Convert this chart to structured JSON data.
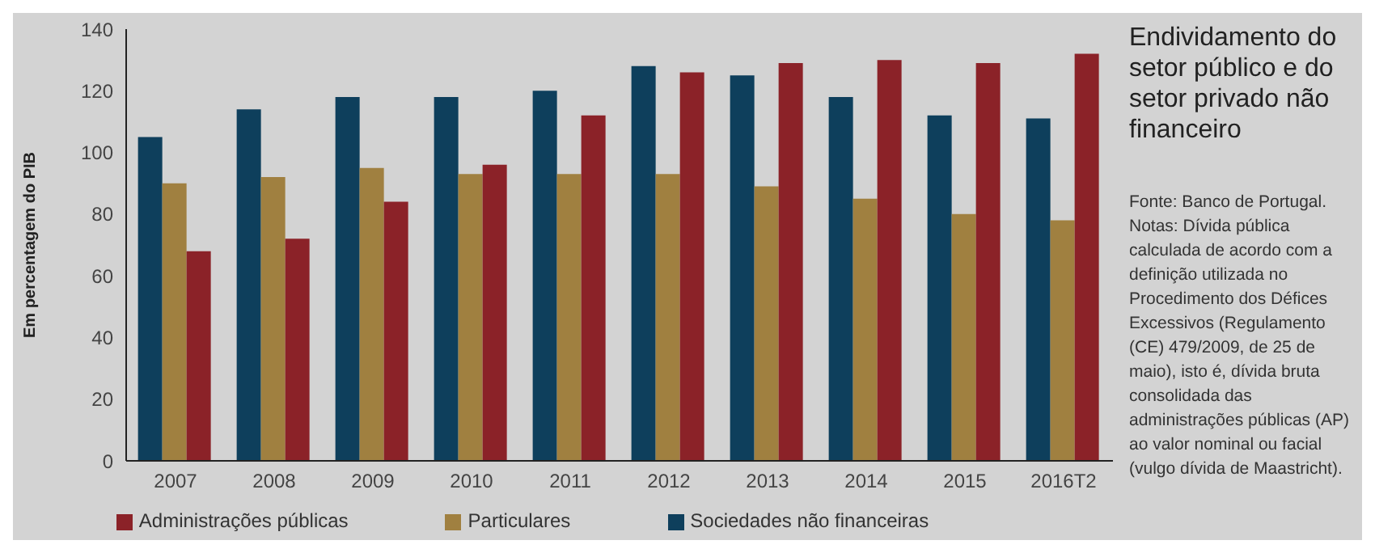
{
  "chart_data": {
    "type": "bar",
    "title": "Endividamento do setor público e do setor privado não financeiro",
    "ylabel": "Em percentagem do PIB",
    "categories": [
      "2007",
      "2008",
      "2009",
      "2010",
      "2011",
      "2012",
      "2013",
      "2014",
      "2015",
      "2016T2"
    ],
    "series": [
      {
        "name": "Sociedades não financeiras",
        "color": "#0e3f5c",
        "values": [
          105,
          114,
          118,
          118,
          120,
          128,
          125,
          118,
          112,
          111
        ]
      },
      {
        "name": "Particulares",
        "color": "#a08040",
        "values": [
          90,
          92,
          95,
          93,
          93,
          93,
          89,
          85,
          80,
          78
        ]
      },
      {
        "name": "Administrações públicas",
        "color": "#8b2228",
        "values": [
          68,
          72,
          84,
          96,
          112,
          126,
          129,
          130,
          129,
          132
        ]
      }
    ],
    "ylim": [
      0,
      140
    ],
    "yticks": [
      0,
      20,
      40,
      60,
      80,
      100,
      120,
      140
    ],
    "grid": false,
    "legend": "bottom",
    "annotations": [
      "Fonte: Banco de Portugal.",
      "Notas: Dívida pública calculada de acordo com a definição utilizada no Procedimento dos Défices Excessivos (Regulamento (CE) 479/2009, de 25 de maio), isto é, dívida bruta consolidada das administrações públicas (AP) ao valor nominal ou facial (vulgo dívida de Maastricht)."
    ]
  }
}
